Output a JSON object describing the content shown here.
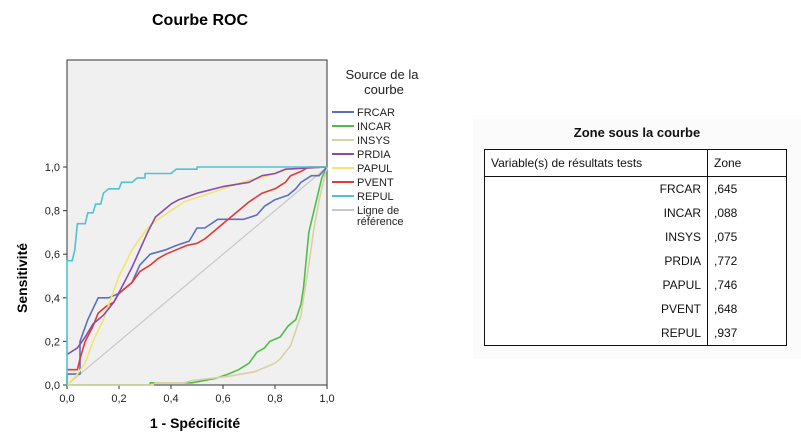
{
  "chart_data": {
    "type": "line",
    "title": "Courbe ROC",
    "xlabel": "1 - Spécificité",
    "ylabel": "Sensitivité",
    "xlim": [
      0,
      1
    ],
    "ylim": [
      0,
      1
    ],
    "x_ticks": [
      "0,0",
      "0,2",
      "0,4",
      "0,6",
      "0,8",
      "1,0"
    ],
    "y_ticks": [
      "0,0",
      "0,2",
      "0,4",
      "0,6",
      "0,8",
      "1,0"
    ],
    "legend_title": "Source de la courbe",
    "legend_position": "right",
    "grid": false,
    "series": [
      {
        "name": "FRCAR",
        "color": "#5b6fc2",
        "points": [
          [
            0,
            0
          ],
          [
            0,
            0.05
          ],
          [
            0.05,
            0.05
          ],
          [
            0.05,
            0.2
          ],
          [
            0.08,
            0.3
          ],
          [
            0.12,
            0.4
          ],
          [
            0.16,
            0.4
          ],
          [
            0.2,
            0.42
          ],
          [
            0.25,
            0.47
          ],
          [
            0.28,
            0.55
          ],
          [
            0.32,
            0.6
          ],
          [
            0.38,
            0.62
          ],
          [
            0.42,
            0.64
          ],
          [
            0.47,
            0.66
          ],
          [
            0.5,
            0.72
          ],
          [
            0.53,
            0.72
          ],
          [
            0.58,
            0.76
          ],
          [
            0.68,
            0.76
          ],
          [
            0.73,
            0.78
          ],
          [
            0.76,
            0.82
          ],
          [
            0.8,
            0.85
          ],
          [
            0.85,
            0.87
          ],
          [
            0.88,
            0.9
          ],
          [
            0.9,
            0.93
          ],
          [
            0.94,
            0.96
          ],
          [
            0.97,
            0.96
          ],
          [
            1,
            1
          ]
        ]
      },
      {
        "name": "INCAR",
        "color": "#4dbd4a",
        "points": [
          [
            0,
            0
          ],
          [
            0.32,
            0
          ],
          [
            0.32,
            0.01
          ],
          [
            0.48,
            0.01
          ],
          [
            0.57,
            0.03
          ],
          [
            0.62,
            0.05
          ],
          [
            0.66,
            0.07
          ],
          [
            0.7,
            0.1
          ],
          [
            0.73,
            0.15
          ],
          [
            0.76,
            0.17
          ],
          [
            0.78,
            0.2
          ],
          [
            0.82,
            0.22
          ],
          [
            0.85,
            0.27
          ],
          [
            0.88,
            0.3
          ],
          [
            0.9,
            0.37
          ],
          [
            0.91,
            0.45
          ],
          [
            0.93,
            0.7
          ],
          [
            0.96,
            0.85
          ],
          [
            0.98,
            0.95
          ],
          [
            1,
            1
          ]
        ]
      },
      {
        "name": "INSYS",
        "color": "#d8d1a3",
        "points": [
          [
            0,
            0
          ],
          [
            0.33,
            0
          ],
          [
            0.34,
            0.01
          ],
          [
            0.45,
            0.01
          ],
          [
            0.48,
            0.02
          ],
          [
            0.55,
            0.03
          ],
          [
            0.62,
            0.04
          ],
          [
            0.67,
            0.05
          ],
          [
            0.72,
            0.06
          ],
          [
            0.76,
            0.08
          ],
          [
            0.8,
            0.1
          ],
          [
            0.82,
            0.12
          ],
          [
            0.86,
            0.18
          ],
          [
            0.88,
            0.25
          ],
          [
            0.9,
            0.32
          ],
          [
            0.91,
            0.4
          ],
          [
            0.93,
            0.55
          ],
          [
            0.95,
            0.72
          ],
          [
            0.97,
            0.85
          ],
          [
            1,
            1
          ]
        ]
      },
      {
        "name": "PRDIA",
        "color": "#8a4cab",
        "points": [
          [
            0,
            0.14
          ],
          [
            0.04,
            0.17
          ],
          [
            0.07,
            0.22
          ],
          [
            0.1,
            0.28
          ],
          [
            0.14,
            0.32
          ],
          [
            0.18,
            0.38
          ],
          [
            0.22,
            0.47
          ],
          [
            0.25,
            0.54
          ],
          [
            0.28,
            0.62
          ],
          [
            0.31,
            0.7
          ],
          [
            0.34,
            0.77
          ],
          [
            0.37,
            0.8
          ],
          [
            0.4,
            0.83
          ],
          [
            0.43,
            0.85
          ],
          [
            0.5,
            0.88
          ],
          [
            0.6,
            0.91
          ],
          [
            0.65,
            0.92
          ],
          [
            0.7,
            0.93
          ],
          [
            0.75,
            0.96
          ],
          [
            0.8,
            0.97
          ],
          [
            0.84,
            0.99
          ],
          [
            1,
            1
          ]
        ]
      },
      {
        "name": "PAPUL",
        "color": "#f3e46d",
        "points": [
          [
            0,
            0
          ],
          [
            0.04,
            0.05
          ],
          [
            0.07,
            0.1
          ],
          [
            0.1,
            0.2
          ],
          [
            0.14,
            0.3
          ],
          [
            0.17,
            0.4
          ],
          [
            0.2,
            0.5
          ],
          [
            0.23,
            0.57
          ],
          [
            0.25,
            0.62
          ],
          [
            0.28,
            0.67
          ],
          [
            0.31,
            0.72
          ],
          [
            0.35,
            0.76
          ],
          [
            0.4,
            0.8
          ],
          [
            0.45,
            0.84
          ],
          [
            0.5,
            0.86
          ],
          [
            0.55,
            0.88
          ],
          [
            0.6,
            0.9
          ],
          [
            0.65,
            0.92
          ],
          [
            0.7,
            0.94
          ],
          [
            0.75,
            0.95
          ],
          [
            0.8,
            0.97
          ],
          [
            0.85,
            0.99
          ],
          [
            1,
            1
          ]
        ]
      },
      {
        "name": "PVENT",
        "color": "#e33a35",
        "points": [
          [
            0,
            0.07
          ],
          [
            0.04,
            0.07
          ],
          [
            0.05,
            0.12
          ],
          [
            0.07,
            0.2
          ],
          [
            0.1,
            0.27
          ],
          [
            0.12,
            0.33
          ],
          [
            0.15,
            0.36
          ],
          [
            0.18,
            0.38
          ],
          [
            0.2,
            0.42
          ],
          [
            0.25,
            0.47
          ],
          [
            0.28,
            0.52
          ],
          [
            0.32,
            0.55
          ],
          [
            0.35,
            0.58
          ],
          [
            0.38,
            0.6
          ],
          [
            0.42,
            0.62
          ],
          [
            0.46,
            0.64
          ],
          [
            0.5,
            0.65
          ],
          [
            0.53,
            0.67
          ],
          [
            0.55,
            0.69
          ],
          [
            0.58,
            0.72
          ],
          [
            0.62,
            0.76
          ],
          [
            0.66,
            0.8
          ],
          [
            0.7,
            0.84
          ],
          [
            0.75,
            0.88
          ],
          [
            0.8,
            0.9
          ],
          [
            0.84,
            0.93
          ],
          [
            0.86,
            0.96
          ],
          [
            0.9,
            0.98
          ],
          [
            0.93,
            1
          ],
          [
            1,
            1
          ]
        ]
      },
      {
        "name": "REPUL",
        "color": "#4fc3d0",
        "points": [
          [
            0,
            0
          ],
          [
            0,
            0.57
          ],
          [
            0.02,
            0.57
          ],
          [
            0.03,
            0.62
          ],
          [
            0.04,
            0.74
          ],
          [
            0.07,
            0.74
          ],
          [
            0.08,
            0.79
          ],
          [
            0.1,
            0.79
          ],
          [
            0.11,
            0.83
          ],
          [
            0.13,
            0.83
          ],
          [
            0.14,
            0.88
          ],
          [
            0.16,
            0.9
          ],
          [
            0.2,
            0.9
          ],
          [
            0.21,
            0.93
          ],
          [
            0.25,
            0.93
          ],
          [
            0.27,
            0.95
          ],
          [
            0.3,
            0.95
          ],
          [
            0.3,
            0.97
          ],
          [
            0.4,
            0.97
          ],
          [
            0.42,
            0.99
          ],
          [
            0.5,
            0.99
          ],
          [
            0.5,
            1
          ],
          [
            1,
            1
          ]
        ]
      },
      {
        "name": "Ligne de référence",
        "color": "#c8c8c8",
        "points": [
          [
            0,
            0
          ],
          [
            1,
            1
          ]
        ]
      }
    ]
  },
  "auc_table": {
    "title": "Zone sous la courbe",
    "col_variable": "Variable(s) de résultats tests",
    "col_zone": "Zone",
    "rows": [
      {
        "variable": "FRCAR",
        "zone": ",645"
      },
      {
        "variable": "INCAR",
        "zone": ",088"
      },
      {
        "variable": "INSYS",
        "zone": ",075"
      },
      {
        "variable": "PRDIA",
        "zone": ",772"
      },
      {
        "variable": "PAPUL",
        "zone": ",746"
      },
      {
        "variable": "PVENT",
        "zone": ",648"
      },
      {
        "variable": "REPUL",
        "zone": ",937"
      }
    ]
  }
}
